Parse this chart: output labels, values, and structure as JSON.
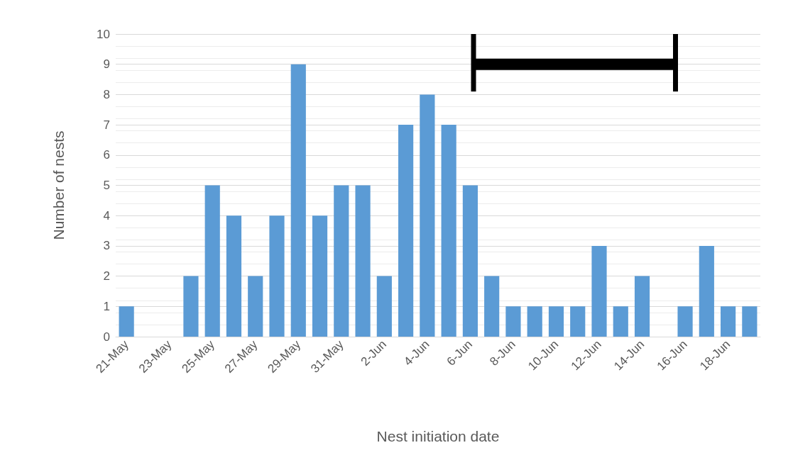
{
  "chart_data": {
    "type": "bar",
    "xlabel": "Nest initiation date",
    "ylabel": "Number of nests",
    "categories": [
      "21-May",
      null,
      "23-May",
      null,
      "25-May",
      null,
      "27-May",
      null,
      "29-May",
      null,
      "31-May",
      null,
      "2-Jun",
      null,
      "4-Jun",
      null,
      "6-Jun",
      null,
      "8-Jun",
      null,
      "10-Jun",
      null,
      "12-Jun",
      null,
      "14-Jun",
      null,
      "16-Jun",
      null,
      "18-Jun",
      null
    ],
    "values": [
      1,
      0,
      0,
      2,
      5,
      4,
      2,
      4,
      9,
      4,
      5,
      5,
      2,
      7,
      8,
      7,
      5,
      2,
      1,
      1,
      1,
      1,
      3,
      1,
      2,
      0,
      1,
      3,
      1,
      1
    ],
    "color": "#5b9bd5",
    "ylim": [
      0,
      10
    ],
    "yticks": [
      0,
      1,
      2,
      3,
      4,
      5,
      6,
      7,
      8,
      9,
      10
    ],
    "grid": "y"
  }
}
